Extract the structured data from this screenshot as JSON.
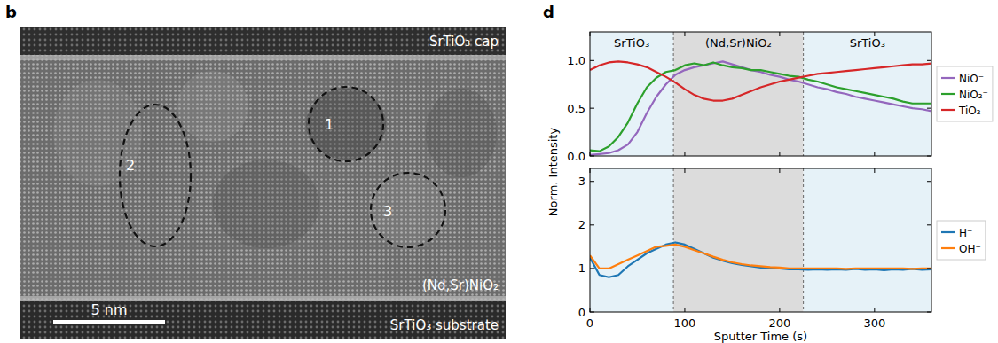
{
  "panel_b": {
    "label": "b",
    "cap_label": "SrTiO₃ cap",
    "film_label": "(Nd,Sr)NiO₂",
    "substrate_label": "SrTiO₃ substrate",
    "scale_bar": "5 nm",
    "regions": [
      {
        "label": "1"
      },
      {
        "label": "2"
      },
      {
        "label": "3"
      }
    ]
  },
  "chart_data": [
    {
      "type": "line",
      "panel_label": "d",
      "ylabel": "Norm. Intensity",
      "x": [
        0,
        10,
        20,
        30,
        40,
        50,
        60,
        70,
        80,
        90,
        100,
        110,
        120,
        130,
        140,
        150,
        160,
        170,
        180,
        190,
        200,
        210,
        220,
        230,
        240,
        250,
        260,
        270,
        280,
        290,
        300,
        310,
        320,
        330,
        340,
        350,
        360
      ],
      "series": [
        {
          "name": "NiO⁻",
          "color": "#9467bd",
          "values": [
            0.01,
            0.02,
            0.03,
            0.06,
            0.12,
            0.25,
            0.45,
            0.62,
            0.75,
            0.85,
            0.9,
            0.93,
            0.95,
            0.97,
            0.99,
            0.96,
            0.93,
            0.9,
            0.88,
            0.85,
            0.83,
            0.8,
            0.78,
            0.75,
            0.72,
            0.7,
            0.67,
            0.65,
            0.62,
            0.6,
            0.58,
            0.56,
            0.54,
            0.52,
            0.5,
            0.49,
            0.47
          ]
        },
        {
          "name": "NiO₂⁻",
          "color": "#2ca02c",
          "values": [
            0.06,
            0.05,
            0.1,
            0.2,
            0.35,
            0.55,
            0.72,
            0.82,
            0.88,
            0.9,
            0.95,
            0.97,
            0.95,
            0.98,
            0.95,
            0.93,
            0.92,
            0.9,
            0.9,
            0.88,
            0.86,
            0.84,
            0.83,
            0.8,
            0.78,
            0.75,
            0.72,
            0.7,
            0.68,
            0.66,
            0.64,
            0.62,
            0.6,
            0.57,
            0.55,
            0.55,
            0.55
          ]
        },
        {
          "name": "TiO₂",
          "color": "#d62728",
          "values": [
            0.9,
            0.95,
            0.98,
            0.99,
            0.98,
            0.96,
            0.93,
            0.88,
            0.83,
            0.77,
            0.7,
            0.64,
            0.6,
            0.58,
            0.58,
            0.6,
            0.64,
            0.68,
            0.72,
            0.75,
            0.78,
            0.8,
            0.82,
            0.84,
            0.86,
            0.87,
            0.88,
            0.89,
            0.9,
            0.91,
            0.92,
            0.93,
            0.94,
            0.95,
            0.96,
            0.96,
            0.97
          ]
        }
      ],
      "regions": [
        {
          "label": "SrTiO₃",
          "start": 0,
          "end": 88,
          "color": "#e6f2f8"
        },
        {
          "label": "(Nd,Sr)NiO₂",
          "start": 88,
          "end": 225,
          "color": "#dcdcdc"
        },
        {
          "label": "SrTiO₃",
          "start": 225,
          "end": 360,
          "color": "#e6f2f8"
        }
      ],
      "xlim": [
        0,
        360
      ],
      "xticks": [
        0,
        100,
        200,
        300
      ],
      "ylim": [
        0,
        1.3
      ],
      "yticks": [
        {
          "value": 0,
          "label": "0.0"
        },
        {
          "value": 0.5,
          "label": "0.5"
        },
        {
          "value": 1,
          "label": "1.0"
        }
      ],
      "tick_labels": "y",
      "legend": "right"
    },
    {
      "type": "line",
      "xlabel": "Sputter Time (s)",
      "x": [
        0,
        10,
        20,
        30,
        40,
        50,
        60,
        70,
        80,
        90,
        100,
        110,
        120,
        130,
        140,
        150,
        160,
        170,
        180,
        190,
        200,
        210,
        220,
        230,
        240,
        250,
        260,
        270,
        280,
        290,
        300,
        310,
        320,
        330,
        340,
        350,
        360
      ],
      "series": [
        {
          "name": "H⁻",
          "color": "#1f77b4",
          "values": [
            1.25,
            0.85,
            0.8,
            0.85,
            1.05,
            1.2,
            1.35,
            1.45,
            1.55,
            1.6,
            1.55,
            1.45,
            1.35,
            1.25,
            1.18,
            1.12,
            1.08,
            1.05,
            1.02,
            1.0,
            1.0,
            0.98,
            0.98,
            0.97,
            0.98,
            0.97,
            0.98,
            0.97,
            0.99,
            0.97,
            0.98,
            0.96,
            0.98,
            0.97,
            0.99,
            0.97,
            0.98
          ]
        },
        {
          "name": "OH⁻",
          "color": "#ff7f0e",
          "values": [
            1.3,
            1.0,
            1.0,
            1.1,
            1.2,
            1.3,
            1.4,
            1.5,
            1.52,
            1.55,
            1.5,
            1.42,
            1.35,
            1.27,
            1.2,
            1.14,
            1.1,
            1.07,
            1.05,
            1.03,
            1.02,
            1.0,
            1.0,
            1.0,
            1.0,
            1.0,
            1.0,
            0.99,
            1.0,
            1.0,
            1.0,
            1.0,
            1.0,
            1.0,
            0.99,
            1.0,
            1.0
          ]
        }
      ],
      "regions": [
        {
          "start": 0,
          "end": 88,
          "color": "#e6f2f8"
        },
        {
          "start": 88,
          "end": 225,
          "color": "#dcdcdc"
        },
        {
          "start": 225,
          "end": 360,
          "color": "#e6f2f8"
        }
      ],
      "xlim": [
        0,
        360
      ],
      "xticks": [
        0,
        100,
        200,
        300
      ],
      "ylim": [
        0,
        3.3
      ],
      "yticks": [
        0,
        1,
        2,
        3
      ],
      "legend": "right"
    }
  ]
}
